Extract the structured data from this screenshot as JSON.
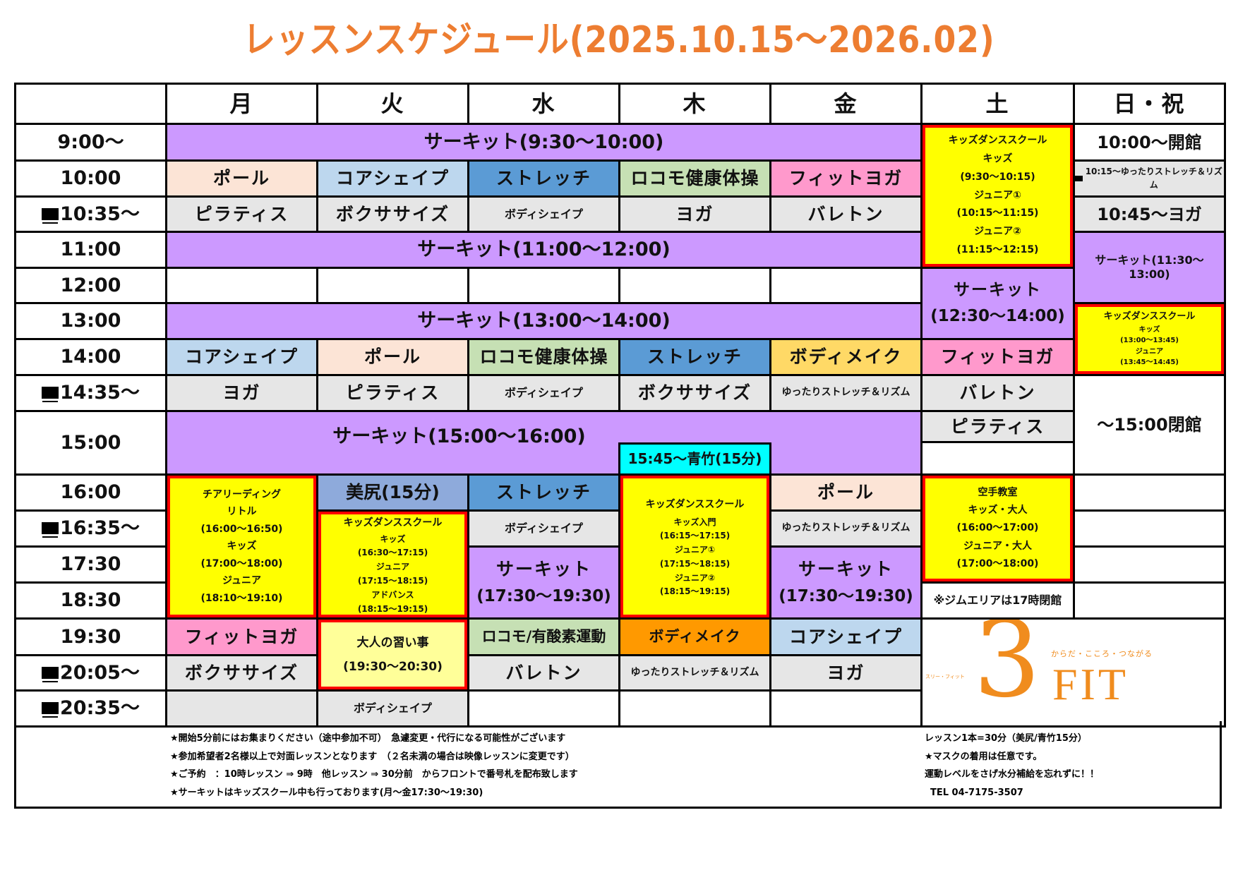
{
  "title": "レッスンスケジュール(2025.10.15～2026.02)",
  "days": [
    "月",
    "火",
    "水",
    "木",
    "金",
    "土",
    "日・祝"
  ],
  "times": [
    "9:00～",
    "10:00",
    "10:35～",
    "11:00",
    "12:00",
    "13:00",
    "14:00",
    "14:35～",
    "15:00",
    "16:00",
    "16:35～",
    "17:30",
    "18:30",
    "19:30",
    "20:05～",
    "20:35～"
  ],
  "lessons": {
    "circuit_930": "サーキット(9:30～10:00)",
    "circuit_1100": "サーキット(11:00～12:00)",
    "circuit_1300": "サーキット(13:00～14:00)",
    "circuit_1500": "サーキット(15:00～16:00)",
    "pole": "ポール",
    "core": "コアシェイプ",
    "stretch": "ストレッチ",
    "locomo": "ロコモ健康体操",
    "fityoga": "フィットヨガ",
    "pilates": "ピラティス",
    "boxercise": "ボクササイズ",
    "bodyshape": "ボディシェイプ",
    "yoga": "ヨガ",
    "bareton": "バレトン",
    "bodymake": "ボディメイク",
    "relax": "ゆったりストレッチ＆リズム",
    "bishiri": "美尻(15分)",
    "aotake": "15:45～青竹(15分)",
    "locomo_aerobic": "ロコモ/有酸素運動",
    "circuit_label": "サーキット",
    "circuit_1730": "(17:30～19:30)",
    "adult_title": "大人の習い事",
    "adult_time": "(19:30～20:30)"
  },
  "saturday": {
    "kids_dance": [
      "キッズダンススクール",
      "キッズ",
      "(9:30～10:15)",
      "ジュニア①",
      "(10:15～11:15)",
      "ジュニア②",
      "(11:15～12:15)"
    ],
    "circuit": "サーキット",
    "circuit_time": "(12:30～14:00)",
    "karate": [
      "空手教室",
      "キッズ・大人",
      "(16:00～17:00)",
      "ジュニア・大人",
      "(17:00～18:00)"
    ],
    "gym_note": "※ジムエリアは17時閉館"
  },
  "sunday": {
    "open": "10:00～開館",
    "relax": "10:15～ゆったりストレッチ＆リズム",
    "yoga": "10:45～ヨガ",
    "circuit": "サーキット(11:30～13:00)",
    "kids_dance": [
      "キッズダンススクール",
      "キッズ",
      "(13:00～13:45)",
      "ジュニア",
      "(13:45～14:45)"
    ],
    "close": "～15:00閉館"
  },
  "monday_cheer": [
    "チアリーディング",
    "リトル",
    "(16:00～16:50)",
    "キッズ",
    "(17:00～18:00)",
    "ジュニア",
    "(18:10～19:10)"
  ],
  "tuesday_kids": [
    "キッズダンススクール",
    "キッズ",
    "(16:30～17:15)",
    "ジュニア",
    "(17:15～18:15)",
    "アドバンス",
    "(18:15～19:15)"
  ],
  "thursday_kids": [
    "キッズダンススクール",
    "キッズ入門",
    "(16:15～17:15)",
    "ジュニア①",
    "(17:15～18:15)",
    "ジュニア②",
    "(18:15～19:15)"
  ],
  "footer": {
    "left": [
      "★開始5分前にはお集まりください（途中参加不可）　急遽変更・代行になる可能性がございます",
      "★参加希望者2名様以上で対面レッスンとなります　（２名未満の場合は映像レッスンに変更です）",
      "★ご予約　：10時レッスン ⇒ 9時　他レッスン ⇒ 30分前　からフロントで番号札を配布致します",
      "★サーキットはキッズスクール中も行っております(月～金17:30～19:30)"
    ],
    "right": [
      "レッスン1本=30分（美尻/青竹15分）",
      "★マスクの着用は任意です。",
      "運動レベルをさげ水分補給を忘れずに！！",
      "TEL 04-7175-3507"
    ]
  },
  "logo": {
    "tagline": "からだ・こころ・つながる",
    "reading": "スリー・フィット",
    "mark": "3",
    "name": "FIT"
  },
  "colors": {
    "title": "#ed7d31",
    "circuit": "#cc99ff",
    "kids": "#ffff00",
    "kids_border": "#ff0000",
    "logo": "#f08c1e"
  }
}
